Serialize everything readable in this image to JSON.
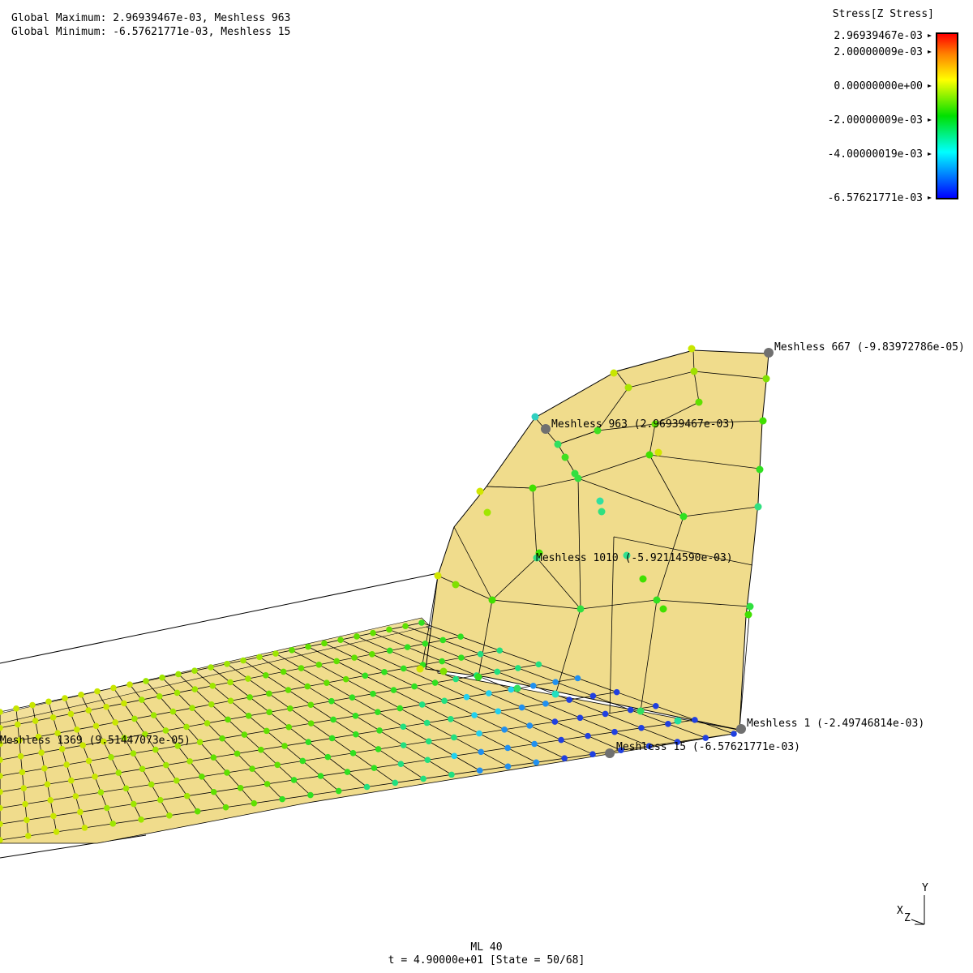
{
  "header": {
    "global_max": "Global Maximum: 2.96939467e-03, Meshless 963",
    "global_min": "Global Minimum: -6.57621771e-03, Meshless 15"
  },
  "legend": {
    "title": "Stress[Z Stress]",
    "ticks": [
      "2.96939467e-03",
      "2.00000009e-03",
      "0.00000000e+00",
      "-2.00000009e-03",
      "-4.00000019e-03",
      "-6.57621771e-03"
    ],
    "colors": [
      "#ff0000",
      "#ffff00",
      "#00e000",
      "#00ffff",
      "#0000ff"
    ]
  },
  "annotations": {
    "m667": "Meshless 667 (-9.83972786e-05)",
    "m963": "Meshless 963 (2.96939467e-03)",
    "m1010": "Meshless 1010 (-5.92114590e-03)",
    "m1": "Meshless 1 (-2.49746814e-03)",
    "m15": "Meshless 15 (-6.57621771e-03)",
    "m1369": "Meshless 1369 (9.51447073e-05)"
  },
  "axes": {
    "y": "Y",
    "x": "X",
    "z": "Z"
  },
  "footer": {
    "line1": "ML 40",
    "line2": "t = 4.90000e+01 [State = 50/68]"
  },
  "colors": {
    "surface": "#f0dc8c",
    "marker": "#707070"
  }
}
